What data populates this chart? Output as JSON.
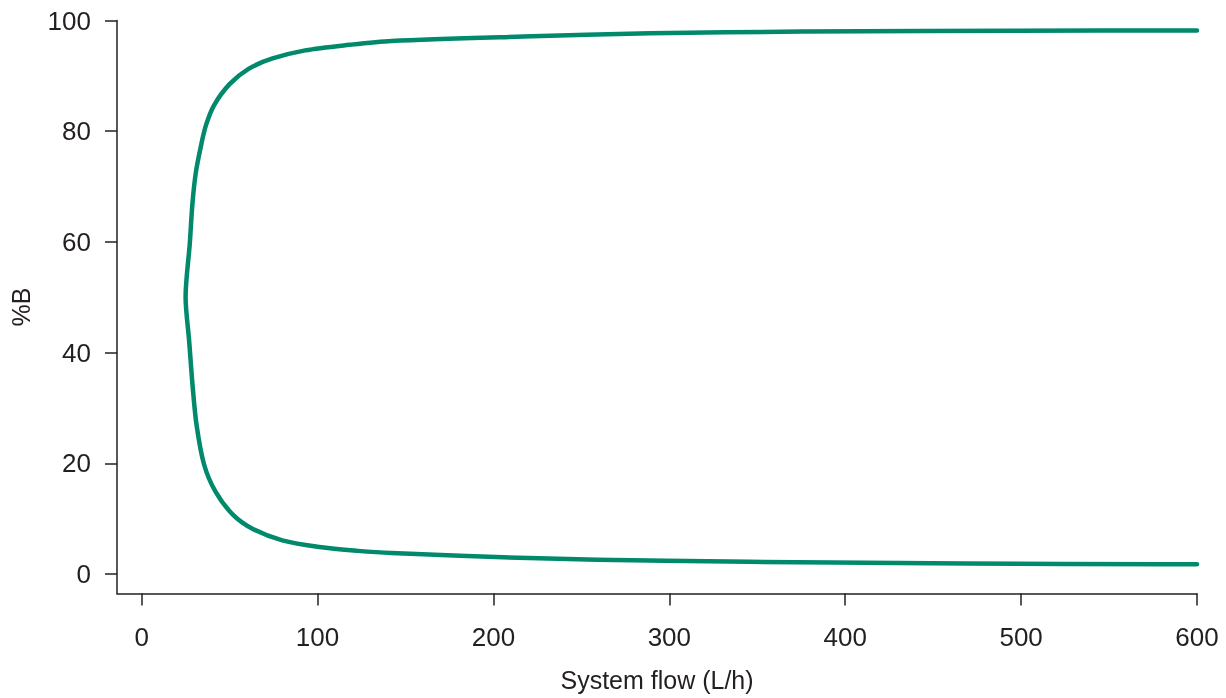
{
  "chart_data": {
    "type": "line",
    "xlabel": "System flow (L/h)",
    "ylabel": "%B",
    "x": [
      600,
      545,
      444,
      375,
      289,
      217,
      142,
      118,
      93,
      74,
      61,
      50,
      41,
      36.5,
      33.7,
      30.8,
      28.9,
      27.4,
      25,
      27,
      28.9,
      31.2,
      35.5,
      42,
      52,
      63,
      80,
      101,
      123,
      142,
      220,
      298,
      393,
      468,
      581,
      600
    ],
    "values": [
      98.2,
      98.2,
      98.1,
      98,
      97.7,
      97.1,
      96.3,
      95.6,
      94.6,
      93.1,
      91.3,
      88.5,
      84.6,
      81,
      77.3,
      72.5,
      67,
      59.8,
      50,
      42.2,
      34.3,
      27,
      19.8,
      14.9,
      10.7,
      8.2,
      6.1,
      4.9,
      4.2,
      3.8,
      2.9,
      2.4,
      2.1,
      1.9,
      1.8,
      1.8
    ],
    "color": "#00896b",
    "xlim": [
      -14,
      600
    ],
    "ylim": [
      -3.5,
      100
    ],
    "xticks": [
      0,
      100,
      200,
      300,
      400,
      500,
      600
    ],
    "yticks": [
      0,
      20,
      40,
      60,
      80,
      100
    ],
    "marker": "none",
    "line_style": "solid"
  }
}
